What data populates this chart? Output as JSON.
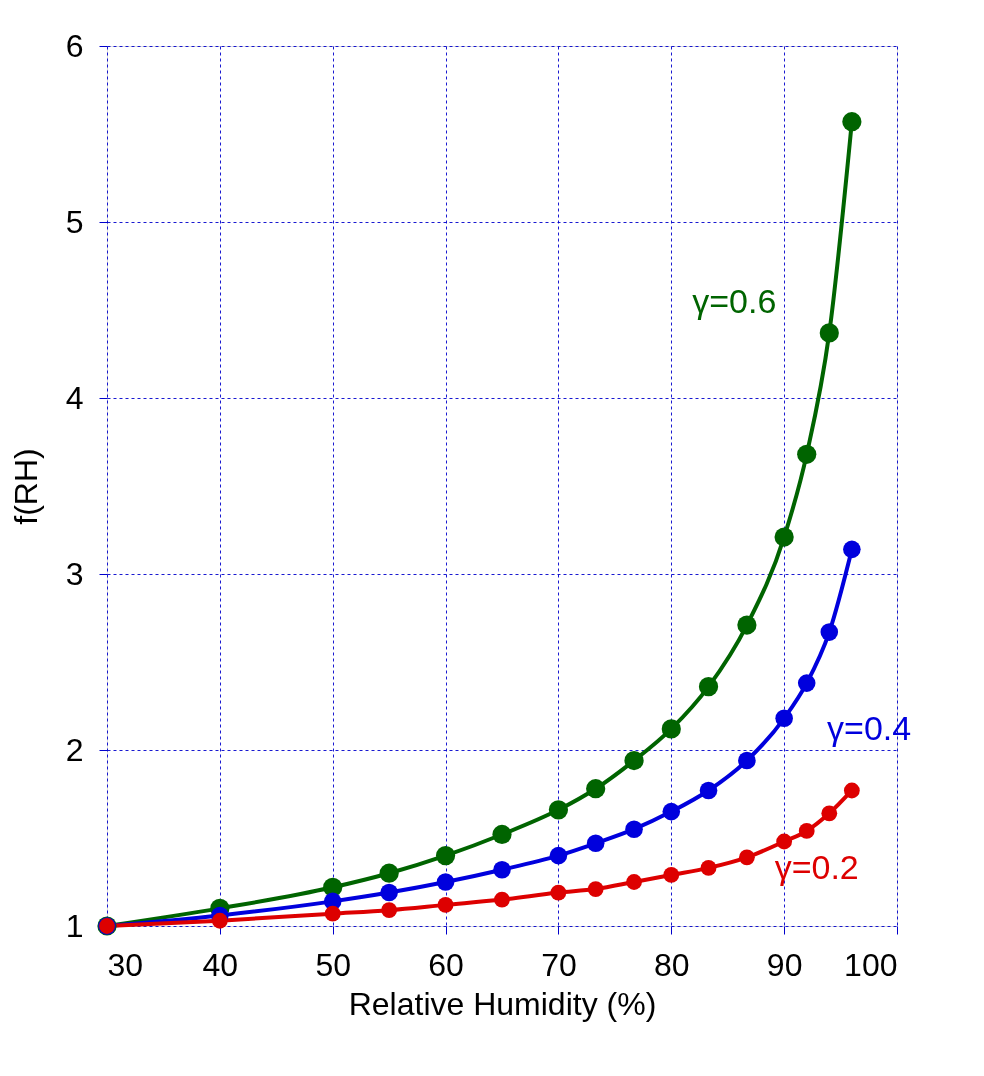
{
  "chart_data": {
    "type": "line",
    "xlabel": "Relative Humidity (%)",
    "ylabel": "f(RH)",
    "x": [
      30,
      40,
      50,
      55,
      60,
      65,
      70,
      73.3,
      76.7,
      80,
      83.3,
      86.7,
      90,
      92,
      94,
      96
    ],
    "series": [
      {
        "name": "γ=0.6",
        "color": "#006400",
        "values": [
          1.0,
          1.1,
          1.22,
          1.3,
          1.4,
          1.52,
          1.66,
          1.78,
          1.94,
          2.12,
          2.36,
          2.71,
          3.21,
          3.68,
          4.37,
          5.57
        ]
      },
      {
        "name": "γ=0.4",
        "color": "#0000dd",
        "values": [
          1.0,
          1.06,
          1.14,
          1.19,
          1.25,
          1.32,
          1.4,
          1.47,
          1.55,
          1.65,
          1.77,
          1.94,
          2.18,
          2.38,
          2.67,
          3.14
        ]
      },
      {
        "name": "γ=0.2",
        "color": "#dd0000",
        "values": [
          1.0,
          1.03,
          1.07,
          1.09,
          1.12,
          1.15,
          1.19,
          1.21,
          1.25,
          1.29,
          1.33,
          1.39,
          1.48,
          1.54,
          1.64,
          1.77
        ]
      }
    ],
    "xlim": [
      30,
      100
    ],
    "xticks": [
      30,
      40,
      50,
      60,
      70,
      80,
      90,
      100
    ],
    "ylim": [
      1,
      6
    ],
    "yticks": [
      1,
      2,
      3,
      4,
      5,
      6
    ],
    "grid": true,
    "legend": false,
    "marker": "circle",
    "line_style": "solid"
  }
}
